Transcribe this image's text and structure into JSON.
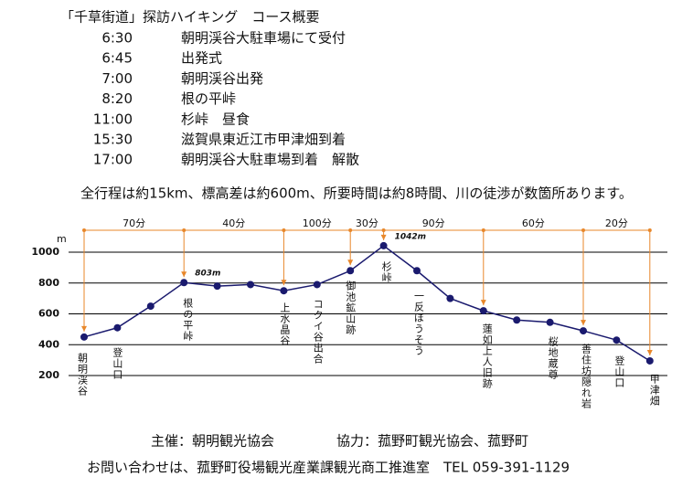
{
  "header": {
    "title": "「千草街道」探訪ハイキング　コース概要"
  },
  "schedule": [
    {
      "time": "6:30",
      "event": "朝明渓谷大駐車場にて受付"
    },
    {
      "time": "6:45",
      "event": "出発式"
    },
    {
      "time": "7:00",
      "event": "朝明渓谷出発"
    },
    {
      "time": "8:20",
      "event": "根の平峠"
    },
    {
      "time": "11:00",
      "event": "杉峠　昼食"
    },
    {
      "time": "15:30",
      "event": "滋賀県東近江市甲津畑到着"
    },
    {
      "time": "17:00",
      "event": "朝明渓谷大駐車場到着　解散"
    }
  ],
  "note": "全行程は約15km、標高差は約600m、所要時間は約8時間、川の徒渉が数箇所あります。",
  "chart_data": {
    "type": "line",
    "y_unit": "m",
    "categories": [
      "朝明渓谷",
      "登山口",
      null,
      "根の平峠",
      null,
      null,
      "上水晶谷",
      "コクイ谷出合",
      "御池鉱山跡",
      "杉峠",
      "一反ぼうそう",
      null,
      "蓮如上人旧跡",
      null,
      "桜地蔵尊",
      "善住坊隠れ岩",
      "登山口",
      "甲津畑"
    ],
    "values": [
      450,
      510,
      650,
      803,
      780,
      790,
      750,
      790,
      880,
      1042,
      880,
      700,
      620,
      560,
      545,
      490,
      430,
      295
    ],
    "value_labels": [
      null,
      null,
      null,
      "803m",
      null,
      null,
      null,
      null,
      null,
      "1042m",
      null,
      null,
      null,
      null,
      null,
      null,
      null,
      null
    ],
    "segment_times": [
      "70分",
      "40分",
      "100分",
      "30分",
      "90分",
      "60分",
      "20分"
    ],
    "ylim": [
      200,
      1000
    ],
    "yticks": [
      200,
      400,
      600,
      800,
      1000
    ],
    "grid": true,
    "color": "#1a1a6e",
    "arrow_color": "#e8872a"
  },
  "footer": {
    "organizer": "主催：朝明観光協会",
    "cooperation": "協力：菰野町観光協会、菰野町",
    "contact": "お問い合わせは、菰野町役場観光産業課観光商工推進室　TEL 059-391-1129"
  }
}
